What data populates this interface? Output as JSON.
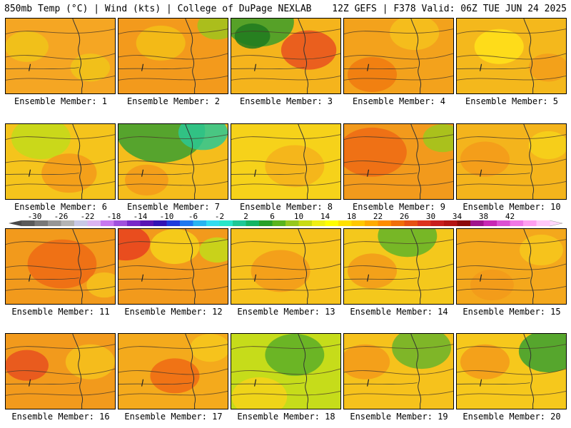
{
  "header": {
    "left_title": "850mb Temp (°C) | Wind (kts) | College of DuPage NEXLAB",
    "right_title": "12Z GEFS | F378 Valid: 06Z TUE JUN 24 2025"
  },
  "colorbar": {
    "tick_labels": [
      "-30",
      "-26",
      "-22",
      "-18",
      "-14",
      "-10",
      "-6",
      "-2",
      "2",
      "6",
      "10",
      "14",
      "18",
      "22",
      "26",
      "30",
      "34",
      "38",
      "42"
    ],
    "colors": [
      "#5a5a5a",
      "#787878",
      "#969696",
      "#b4b4b4",
      "#c8c8e6",
      "#dcb4f0",
      "#c878f0",
      "#a050dc",
      "#7828c8",
      "#5a14b4",
      "#3214b4",
      "#1e3cdc",
      "#1e78f0",
      "#28b4f0",
      "#32dcf0",
      "#28e6c8",
      "#1ec896",
      "#14b464",
      "#28a028",
      "#5ab41e",
      "#96c81e",
      "#c8dc14",
      "#f0f014",
      "#ffff00",
      "#ffe100",
      "#ffc800",
      "#ffaa00",
      "#ff8c00",
      "#f06e0a",
      "#e65014",
      "#dc321e",
      "#c81e1e",
      "#b41414",
      "#8c0a0a",
      "#a0148c",
      "#c828b4",
      "#dc50d2",
      "#f078e6",
      "#ff9ff0",
      "#ffc8f8"
    ]
  },
  "members": [
    {
      "label": "Ensemble Member: 1",
      "base": "#f5a623",
      "blobs": [
        {
          "cx": 30,
          "cy": 40,
          "r": 22,
          "c": "#f0c419"
        },
        {
          "cx": 120,
          "cy": 70,
          "r": 20,
          "c": "#f0c419"
        }
      ]
    },
    {
      "label": "Ensemble Member: 2",
      "base": "#f39a1c",
      "blobs": [
        {
          "cx": 60,
          "cy": 35,
          "r": 25,
          "c": "#f2bf16"
        },
        {
          "cx": 140,
          "cy": 10,
          "r": 20,
          "c": "#9ec41c"
        }
      ]
    },
    {
      "label": "Ensemble Member: 3",
      "base": "#f5b41c",
      "blobs": [
        {
          "cx": 40,
          "cy": 5,
          "r": 35,
          "c": "#3a9d2a"
        },
        {
          "cx": 110,
          "cy": 45,
          "r": 28,
          "c": "#e8501e"
        },
        {
          "cx": 30,
          "cy": 25,
          "r": 18,
          "c": "#1e7a1e"
        }
      ]
    },
    {
      "label": "Ensemble Member: 4",
      "base": "#f3a21c",
      "blobs": [
        {
          "cx": 40,
          "cy": 80,
          "r": 25,
          "c": "#f07a0f"
        },
        {
          "cx": 100,
          "cy": 20,
          "r": 25,
          "c": "#f4c21c"
        }
      ]
    },
    {
      "label": "Ensemble Member: 5",
      "base": "#f4b81c",
      "blobs": [
        {
          "cx": 60,
          "cy": 40,
          "r": 25,
          "c": "#ffe21a"
        },
        {
          "cx": 130,
          "cy": 70,
          "r": 20,
          "c": "#f29c1a"
        }
      ]
    },
    {
      "label": "Ensemble Member: 6",
      "base": "#f5c41c",
      "blobs": [
        {
          "cx": 50,
          "cy": 20,
          "r": 30,
          "c": "#c2dc1a"
        },
        {
          "cx": 90,
          "cy": 70,
          "r": 28,
          "c": "#f39a1a"
        }
      ]
    },
    {
      "label": "Ensemble Member: 7",
      "base": "#f5bd1c",
      "blobs": [
        {
          "cx": 60,
          "cy": 10,
          "r": 45,
          "c": "#3aa030"
        },
        {
          "cx": 120,
          "cy": 12,
          "r": 25,
          "c": "#2ac894"
        },
        {
          "cx": 40,
          "cy": 80,
          "r": 22,
          "c": "#f39a1a"
        }
      ]
    },
    {
      "label": "Ensemble Member: 8",
      "base": "#f6d21a",
      "blobs": [
        {
          "cx": 90,
          "cy": 60,
          "r": 30,
          "c": "#f5b21c"
        }
      ]
    },
    {
      "label": "Ensemble Member: 9",
      "base": "#f29a1c",
      "blobs": [
        {
          "cx": 40,
          "cy": 40,
          "r": 35,
          "c": "#ee6a14"
        },
        {
          "cx": 140,
          "cy": 20,
          "r": 20,
          "c": "#9ec81c"
        }
      ]
    },
    {
      "label": "Ensemble Member: 10",
      "base": "#f4b41c",
      "blobs": [
        {
          "cx": 40,
          "cy": 50,
          "r": 25,
          "c": "#f39a1a"
        },
        {
          "cx": 130,
          "cy": 30,
          "r": 20,
          "c": "#f6d21a"
        }
      ]
    },
    {
      "label": "Ensemble Member: 11",
      "base": "#f29a1c",
      "blobs": [
        {
          "cx": 80,
          "cy": 50,
          "r": 35,
          "c": "#ee6a14"
        },
        {
          "cx": 140,
          "cy": 80,
          "r": 18,
          "c": "#f6c21c"
        }
      ]
    },
    {
      "label": "Ensemble Member: 12",
      "base": "#f29a1c",
      "blobs": [
        {
          "cx": 10,
          "cy": 20,
          "r": 25,
          "c": "#e8401e"
        },
        {
          "cx": 80,
          "cy": 25,
          "r": 25,
          "c": "#f6d21a"
        },
        {
          "cx": 140,
          "cy": 30,
          "r": 18,
          "c": "#c2dc1a"
        }
      ]
    },
    {
      "label": "Ensemble Member: 13",
      "base": "#f6c21c",
      "blobs": [
        {
          "cx": 70,
          "cy": 60,
          "r": 30,
          "c": "#f39a1a"
        }
      ]
    },
    {
      "label": "Ensemble Member: 14",
      "base": "#f4c81c",
      "blobs": [
        {
          "cx": 90,
          "cy": 10,
          "r": 30,
          "c": "#60b428"
        },
        {
          "cx": 40,
          "cy": 60,
          "r": 25,
          "c": "#f29a1a"
        }
      ]
    },
    {
      "label": "Ensemble Member: 15",
      "base": "#f4a81c",
      "blobs": [
        {
          "cx": 120,
          "cy": 30,
          "r": 22,
          "c": "#f6c81c"
        },
        {
          "cx": 50,
          "cy": 80,
          "r": 22,
          "c": "#f29a1a"
        }
      ]
    },
    {
      "label": "Ensemble Member: 16",
      "base": "#f29a1c",
      "blobs": [
        {
          "cx": 30,
          "cy": 45,
          "r": 22,
          "c": "#e8501e"
        },
        {
          "cx": 120,
          "cy": 40,
          "r": 25,
          "c": "#f6c21c"
        }
      ]
    },
    {
      "label": "Ensemble Member: 17",
      "base": "#f4aa1c",
      "blobs": [
        {
          "cx": 80,
          "cy": 60,
          "r": 25,
          "c": "#ee6a14"
        },
        {
          "cx": 130,
          "cy": 20,
          "r": 20,
          "c": "#f6c81c"
        }
      ]
    },
    {
      "label": "Ensemble Member: 18",
      "base": "#c6dc1a",
      "blobs": [
        {
          "cx": 90,
          "cy": 30,
          "r": 30,
          "c": "#5aae28"
        },
        {
          "cx": 40,
          "cy": 90,
          "r": 28,
          "c": "#f6d21a"
        }
      ]
    },
    {
      "label": "Ensemble Member: 19",
      "base": "#f6c21c",
      "blobs": [
        {
          "cx": 110,
          "cy": 20,
          "r": 30,
          "c": "#6ab42a"
        },
        {
          "cx": 30,
          "cy": 40,
          "r": 25,
          "c": "#f39a1a"
        }
      ]
    },
    {
      "label": "Ensemble Member: 20",
      "base": "#f6c81c",
      "blobs": [
        {
          "cx": 130,
          "cy": 25,
          "r": 30,
          "c": "#3aa030"
        },
        {
          "cx": 40,
          "cy": 40,
          "r": 25,
          "c": "#f39a1a"
        }
      ]
    }
  ]
}
